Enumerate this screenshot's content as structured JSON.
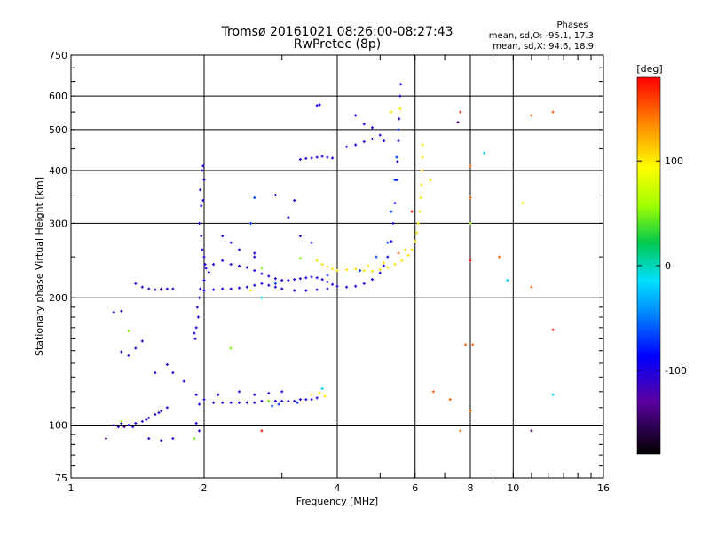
{
  "chart_data": {
    "type": "scatter",
    "title": "Tromsø 20161021 08:26:00-08:27:43",
    "subtitle": "RwPretec (8p)",
    "phase_box": {
      "heading": "Phases",
      "line_o": "mean, sd,O: -95.1, 17.3",
      "line_x": "mean, sd,X:  94.6, 18.9"
    },
    "xlabel": "Frequency [MHz]",
    "ylabel": "Stationary phase Virtual Height [km]",
    "x_scale": "log",
    "y_scale": "log",
    "xlim": [
      1,
      16
    ],
    "ylim": [
      75,
      750
    ],
    "x_ticks": [
      {
        "v": 1,
        "label": "1"
      },
      {
        "v": 2,
        "label": "2"
      },
      {
        "v": 4,
        "label": "4"
      },
      {
        "v": 6,
        "label": "6"
      },
      {
        "v": 8,
        "label": "8"
      },
      {
        "v": 10,
        "label": "10"
      },
      {
        "v": 16,
        "label": "16"
      }
    ],
    "y_ticks": [
      {
        "v": 75,
        "label": "75"
      },
      {
        "v": 100,
        "label": "100"
      },
      {
        "v": 200,
        "label": "200"
      },
      {
        "v": 300,
        "label": "300"
      },
      {
        "v": 400,
        "label": "400"
      },
      {
        "v": 500,
        "label": "500"
      },
      {
        "v": 600,
        "label": "600"
      },
      {
        "v": 750,
        "label": "750"
      }
    ],
    "grid_x": [
      2,
      4,
      6,
      8,
      10
    ],
    "grid_y": [
      100,
      200,
      300,
      400,
      500,
      600
    ],
    "colorbar": {
      "label": "[deg]",
      "range": [
        -180,
        180
      ],
      "ticks": [
        {
          "v": 100,
          "label": "100"
        },
        {
          "v": 0,
          "label": "0"
        },
        {
          "v": -100,
          "label": "-100"
        }
      ]
    },
    "series": [
      {
        "phase": -110,
        "points": [
          [
            1.25,
            100
          ],
          [
            1.3,
            101
          ],
          [
            1.35,
            100
          ],
          [
            1.4,
            101
          ],
          [
            1.45,
            102
          ],
          [
            1.5,
            104
          ],
          [
            1.55,
            106
          ],
          [
            1.6,
            108
          ],
          [
            1.28,
            99
          ],
          [
            1.38,
            99
          ],
          [
            1.48,
            103
          ],
          [
            1.58,
            107
          ],
          [
            1.65,
            110
          ],
          [
            1.35,
            146
          ],
          [
            1.4,
            152
          ],
          [
            1.45,
            158
          ],
          [
            1.3,
            149
          ],
          [
            1.4,
            216
          ],
          [
            1.45,
            212
          ],
          [
            1.5,
            210
          ],
          [
            1.55,
            209
          ],
          [
            1.6,
            209
          ],
          [
            1.65,
            210
          ],
          [
            1.7,
            210
          ],
          [
            1.5,
            93
          ],
          [
            1.6,
            92
          ],
          [
            1.7,
            93
          ],
          [
            1.55,
            133
          ],
          [
            1.65,
            139
          ],
          [
            1.7,
            133
          ],
          [
            1.8,
            127
          ],
          [
            1.25,
            185
          ],
          [
            1.3,
            186
          ]
        ]
      },
      {
        "phase": -100,
        "points": [
          [
            1.95,
            300
          ],
          [
            1.97,
            330
          ],
          [
            1.96,
            360
          ],
          [
            1.98,
            400
          ],
          [
            1.99,
            410
          ],
          [
            2.0,
            380
          ],
          [
            1.99,
            340
          ],
          [
            1.97,
            280
          ],
          [
            1.98,
            260
          ],
          [
            2.0,
            250
          ],
          [
            2.01,
            240
          ],
          [
            2.02,
            235
          ],
          [
            1.94,
            180
          ],
          [
            1.93,
            190
          ],
          [
            1.92,
            170
          ],
          [
            1.91,
            160
          ],
          [
            1.9,
            165
          ],
          [
            1.95,
            200
          ],
          [
            1.96,
            210
          ],
          [
            2.0,
            220
          ],
          [
            2.05,
            230
          ],
          [
            2.1,
            240
          ],
          [
            2.2,
            245
          ],
          [
            2.3,
            240
          ],
          [
            2.4,
            238
          ],
          [
            2.5,
            236
          ],
          [
            2.6,
            232
          ],
          [
            2.7,
            228
          ],
          [
            2.8,
            225
          ],
          [
            2.9,
            222
          ],
          [
            3.0,
            220
          ],
          [
            3.1,
            220
          ],
          [
            3.2,
            221
          ],
          [
            3.3,
            222
          ],
          [
            3.4,
            223
          ],
          [
            3.5,
            224
          ],
          [
            3.6,
            223
          ],
          [
            3.7,
            221
          ],
          [
            3.8,
            218
          ],
          [
            3.9,
            215
          ],
          [
            4.0,
            213
          ],
          [
            4.2,
            212
          ],
          [
            4.4,
            213
          ],
          [
            4.6,
            216
          ],
          [
            4.8,
            221
          ],
          [
            5.0,
            229
          ],
          [
            5.1,
            238
          ],
          [
            5.2,
            250
          ],
          [
            5.3,
            272
          ],
          [
            5.35,
            300
          ],
          [
            5.4,
            335
          ],
          [
            5.45,
            380
          ],
          [
            5.47,
            420
          ],
          [
            5.5,
            470
          ],
          [
            5.52,
            530
          ],
          [
            5.55,
            600
          ],
          [
            5.57,
            640
          ],
          [
            2.0,
            208
          ],
          [
            2.1,
            209
          ],
          [
            2.2,
            210
          ],
          [
            2.3,
            210
          ],
          [
            2.4,
            211
          ],
          [
            2.5,
            212
          ],
          [
            2.6,
            214
          ],
          [
            2.7,
            216
          ],
          [
            2.8,
            214
          ],
          [
            2.9,
            212
          ],
          [
            3.0,
            210
          ],
          [
            3.2,
            208
          ],
          [
            3.4,
            208
          ],
          [
            3.6,
            209
          ],
          [
            3.8,
            210
          ],
          [
            2.1,
            113
          ],
          [
            2.2,
            113
          ],
          [
            2.3,
            113
          ],
          [
            2.4,
            113
          ],
          [
            2.5,
            113
          ],
          [
            2.6,
            113
          ],
          [
            2.7,
            114
          ],
          [
            2.8,
            114
          ],
          [
            2.9,
            114
          ],
          [
            3.0,
            114
          ],
          [
            3.1,
            114
          ],
          [
            3.2,
            114
          ],
          [
            3.3,
            115
          ],
          [
            3.4,
            115
          ],
          [
            3.5,
            115
          ],
          [
            3.6,
            116
          ],
          [
            2.0,
            115
          ],
          [
            2.15,
            118
          ],
          [
            2.4,
            120
          ],
          [
            2.6,
            118
          ],
          [
            2.8,
            119
          ],
          [
            3.0,
            120
          ],
          [
            1.95,
            112
          ],
          [
            1.92,
            118
          ],
          [
            3.3,
            425
          ],
          [
            3.4,
            427
          ],
          [
            3.5,
            428
          ],
          [
            3.6,
            430
          ],
          [
            3.7,
            432
          ],
          [
            3.8,
            430
          ],
          [
            3.9,
            428
          ],
          [
            3.6,
            570
          ],
          [
            3.65,
            572
          ],
          [
            4.2,
            455
          ],
          [
            4.4,
            460
          ],
          [
            4.6,
            468
          ],
          [
            4.8,
            475
          ],
          [
            5.0,
            485
          ],
          [
            5.1,
            470
          ],
          [
            4.4,
            540
          ],
          [
            4.6,
            515
          ],
          [
            4.8,
            505
          ],
          [
            2.9,
            350
          ],
          [
            3.1,
            310
          ],
          [
            3.2,
            340
          ],
          [
            3.3,
            280
          ],
          [
            2.4,
            260
          ],
          [
            2.6,
            250
          ],
          [
            2.3,
            270
          ],
          [
            2.2,
            280
          ],
          [
            1.92,
            101
          ],
          [
            1.95,
            97
          ],
          [
            2.6,
            255
          ],
          [
            3.5,
            270
          ]
        ]
      },
      {
        "phase": -70,
        "points": [
          [
            5.45,
            430
          ],
          [
            5.5,
            500
          ],
          [
            5.3,
            320
          ],
          [
            4.9,
            250
          ],
          [
            4.5,
            232
          ],
          [
            3.8,
            226
          ],
          [
            2.9,
            216
          ],
          [
            2.55,
            300
          ],
          [
            2.6,
            345
          ],
          [
            3.25,
            113
          ],
          [
            2.85,
            111
          ],
          [
            2.95,
            112
          ],
          [
            5.4,
            380
          ],
          [
            5.2,
            270
          ]
        ]
      },
      {
        "phase": 105,
        "points": [
          [
            3.6,
            245
          ],
          [
            3.7,
            240
          ],
          [
            3.8,
            237
          ],
          [
            3.9,
            234
          ],
          [
            4.0,
            232
          ],
          [
            4.2,
            233
          ],
          [
            4.4,
            234
          ],
          [
            4.6,
            232
          ],
          [
            4.8,
            231
          ],
          [
            5.0,
            233
          ],
          [
            5.2,
            236
          ],
          [
            5.4,
            240
          ],
          [
            5.6,
            245
          ],
          [
            5.8,
            252
          ],
          [
            5.9,
            260
          ],
          [
            6.0,
            272
          ],
          [
            6.05,
            285
          ],
          [
            6.1,
            300
          ],
          [
            6.15,
            320
          ],
          [
            6.18,
            345
          ],
          [
            6.2,
            370
          ],
          [
            6.22,
            400
          ],
          [
            6.23,
            430
          ],
          [
            6.24,
            460
          ],
          [
            3.5,
            118
          ],
          [
            3.65,
            119
          ],
          [
            3.75,
            117
          ],
          [
            2.55,
            208
          ],
          [
            6.5,
            380
          ],
          [
            10.5,
            335
          ],
          [
            5.3,
            550
          ],
          [
            5.55,
            560
          ],
          [
            4.7,
            238
          ],
          [
            5.1,
            242
          ],
          [
            5.7,
            260
          ]
        ]
      },
      {
        "phase": 50,
        "points": [
          [
            2.3,
            152
          ],
          [
            2.8,
            114
          ],
          [
            1.3,
            102
          ],
          [
            1.9,
            93
          ],
          [
            2.7,
            235
          ],
          [
            3.3,
            248
          ],
          [
            1.35,
            167
          ],
          [
            8.0,
            300
          ]
        ]
      },
      {
        "phase": 150,
        "points": [
          [
            8.0,
            410
          ],
          [
            8.0,
            345
          ],
          [
            7.8,
            155
          ],
          [
            8.0,
            108
          ],
          [
            7.6,
            97
          ],
          [
            11.0,
            540
          ],
          [
            12.3,
            550
          ],
          [
            11.0,
            212
          ],
          [
            9.3,
            250
          ],
          [
            6.6,
            120
          ],
          [
            7.2,
            115
          ],
          [
            8.1,
            155
          ],
          [
            5.5,
            255
          ]
        ]
      },
      {
        "phase": -20,
        "points": [
          [
            8.6,
            440
          ],
          [
            9.7,
            220
          ],
          [
            12.3,
            118
          ],
          [
            2.7,
            200
          ],
          [
            3.7,
            122
          ]
        ]
      },
      {
        "phase": 175,
        "points": [
          [
            2.7,
            97
          ],
          [
            7.6,
            550
          ],
          [
            5.9,
            320
          ],
          [
            12.3,
            168
          ],
          [
            8.0,
            245
          ]
        ]
      },
      {
        "phase": -140,
        "points": [
          [
            1.2,
            93
          ],
          [
            11.0,
            97
          ],
          [
            7.5,
            520
          ],
          [
            1.6,
            210
          ],
          [
            1.32,
            99
          ]
        ]
      }
    ]
  }
}
